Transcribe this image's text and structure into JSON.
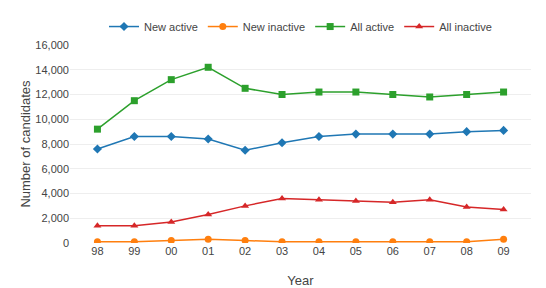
{
  "chart_data": {
    "type": "line",
    "xlabel": "Year",
    "ylabel": "Number of candidates",
    "categories": [
      "98",
      "99",
      "00",
      "01",
      "02",
      "03",
      "04",
      "05",
      "06",
      "07",
      "08",
      "09"
    ],
    "series": [
      {
        "name": "New active",
        "marker": "diamond",
        "values": [
          7600,
          8600,
          8600,
          8400,
          7500,
          8100,
          8600,
          8800,
          8800,
          8800,
          9000,
          9100
        ]
      },
      {
        "name": "New inactive",
        "marker": "circle",
        "values": [
          100,
          100,
          200,
          300,
          200,
          100,
          100,
          100,
          100,
          100,
          100,
          300
        ]
      },
      {
        "name": "All active",
        "marker": "square",
        "values": [
          9200,
          11500,
          13200,
          14200,
          12500,
          12000,
          12200,
          12200,
          12000,
          11800,
          12000,
          12200
        ]
      },
      {
        "name": "All inactive",
        "marker": "triangle-up",
        "values": [
          1400,
          1400,
          1700,
          2300,
          3000,
          3600,
          3500,
          3400,
          3300,
          3500,
          2900,
          2700
        ]
      }
    ],
    "ylim": [
      0,
      16000
    ],
    "yticks": [
      0,
      {
        "value": 2000,
        "label": "2,000"
      },
      {
        "value": 4000,
        "label": "4,000"
      },
      {
        "value": 6000,
        "label": "6,000"
      },
      {
        "value": 8000,
        "label": "8,000"
      },
      {
        "value": 10000,
        "label": "10,000"
      },
      {
        "value": 12000,
        "label": "12,000"
      },
      {
        "value": 14000,
        "label": "14,000"
      },
      {
        "value": 16000,
        "label": "16,000"
      }
    ],
    "grid": true,
    "legend": "top"
  }
}
